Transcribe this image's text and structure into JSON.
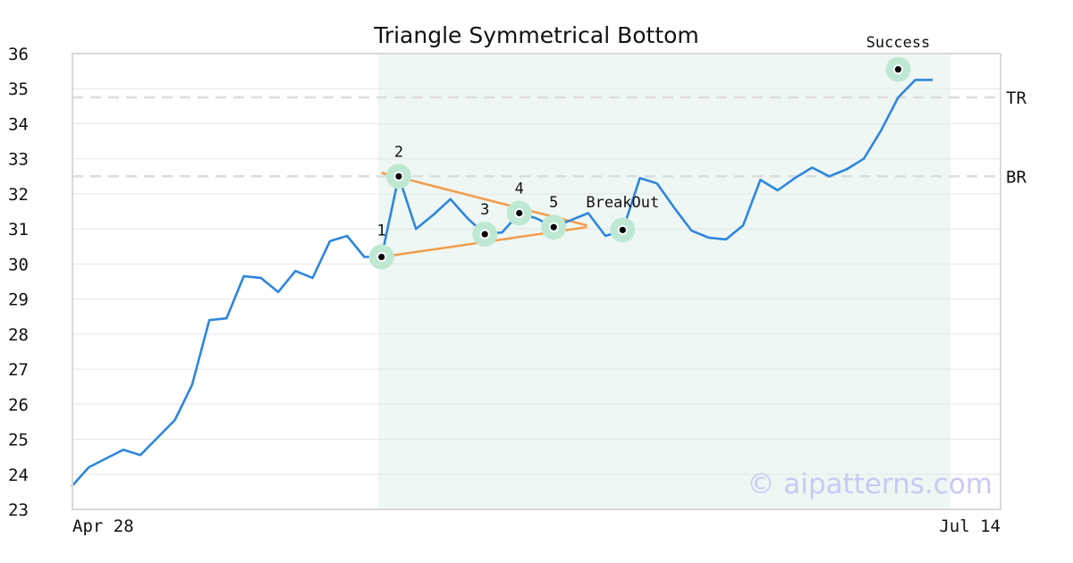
{
  "chart_data": {
    "type": "line",
    "title": "Triangle Symmetrical Bottom",
    "ylim": [
      23,
      36
    ],
    "yticks": [
      23,
      24,
      25,
      26,
      27,
      28,
      29,
      30,
      31,
      32,
      33,
      34,
      35,
      36
    ],
    "xlim": [
      0,
      50
    ],
    "xtick_labels": [
      {
        "x": 0,
        "label": "Apr 28"
      },
      {
        "x": 50,
        "label": "Jul 14"
      }
    ],
    "grid": true,
    "pattern_region": {
      "x_start": 16,
      "x_end": 50
    },
    "series": [
      {
        "color": "#2e86de",
        "x": [
          0,
          1,
          2,
          3,
          4,
          5,
          6,
          7,
          8,
          9,
          10,
          11,
          12,
          13,
          14,
          15,
          16,
          17,
          18,
          19,
          20,
          21,
          22,
          23,
          24,
          25,
          26,
          27,
          28,
          29,
          30,
          31,
          32,
          33,
          34,
          35,
          36,
          37,
          38,
          39,
          40,
          41,
          42,
          43,
          44,
          45,
          46,
          47,
          48,
          49,
          50
        ],
        "values": [
          23.65,
          24.2,
          24.45,
          24.7,
          24.55,
          25.05,
          25.55,
          26.55,
          28.4,
          28.45,
          29.65,
          29.6,
          29.2,
          29.8,
          29.6,
          30.65,
          30.8,
          30.2,
          30.2,
          32.5,
          31.0,
          31.4,
          31.85,
          31.3,
          30.85,
          30.9,
          31.45,
          31.3,
          31.05,
          31.25,
          31.45,
          30.8,
          30.95,
          32.45,
          32.3,
          31.6,
          30.95,
          30.75,
          30.7,
          31.1,
          32.4,
          32.1,
          32.45,
          32.75,
          32.5,
          32.7,
          33.0,
          33.8,
          34.75,
          35.25,
          35.25
        ]
      }
    ],
    "trendlines": [
      {
        "color": "#f39c4a",
        "from": [
          18,
          32.6
        ],
        "to": [
          29,
          31.1
        ]
      },
      {
        "color": "#f39c4a",
        "from": [
          18,
          30.2
        ],
        "to": [
          29,
          31.05
        ]
      }
    ],
    "levels": [
      {
        "label": "TR",
        "y": 34.75,
        "color": "#dcdcdc"
      },
      {
        "label": "BR",
        "y": 32.5,
        "color": "#dcdcdc"
      }
    ],
    "points": [
      {
        "label": "1",
        "x": 18,
        "y": 30.2
      },
      {
        "label": "2",
        "x": 19,
        "y": 32.5
      },
      {
        "label": "3",
        "x": 24,
        "y": 30.85
      },
      {
        "label": "4",
        "x": 26,
        "y": 31.45
      },
      {
        "label": "5",
        "x": 28,
        "y": 31.05
      },
      {
        "label": "BreakOut",
        "x": 32,
        "y": 30.97
      },
      {
        "label": "Success",
        "x": 48,
        "y": 35.55
      }
    ],
    "colors": {
      "line": "#2e86de",
      "trend": "#f39c4a",
      "marker_halo": "#bfe8d3",
      "region_fill": "#eef7f3",
      "grid": "#e6e6e6",
      "frame": "#d9d9d9"
    }
  },
  "watermark": "© aipatterns.com"
}
